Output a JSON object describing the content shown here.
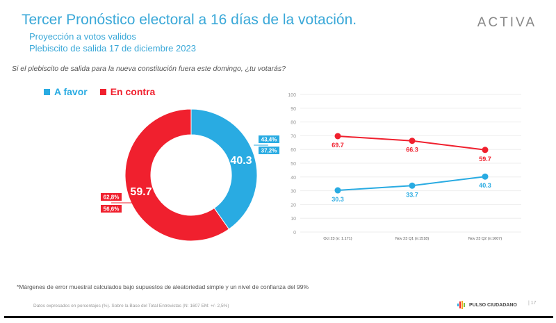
{
  "header": {
    "title": "Tercer Pronóstico electoral a 16 días de la votación.",
    "subtitle1": "Proyección a votos validos",
    "subtitle2": "Plebiscito de salida 17 de diciembre 2023",
    "logo": "ACTIVA"
  },
  "question": "Si el plebiscito de salida para la nueva constitución fuera este domingo, ¿tu votarás?",
  "colors": {
    "favor": "#29abe2",
    "contra": "#f0202e",
    "title": "#3aa8d8"
  },
  "chart_data": [
    {
      "type": "pie",
      "variant": "donut",
      "legend": [
        "A favor",
        "En contra"
      ],
      "legend_position": "top-left",
      "slices": [
        {
          "name": "A favor",
          "value": 40.3,
          "label": "40.3",
          "range": [
            "43,4%",
            "37,2%"
          ]
        },
        {
          "name": "En contra",
          "value": 59.7,
          "label": "59.7",
          "range": [
            "62,8%",
            "56,6%"
          ]
        }
      ]
    },
    {
      "type": "line",
      "categories": [
        "Oct 23 (n: 1.171)",
        "Nov 23 Q1 (n:1518)",
        "Nov 23 Q2 (n:1607)"
      ],
      "ylim": [
        0,
        100
      ],
      "yticks": [
        0,
        10,
        20,
        30,
        40,
        50,
        60,
        70,
        80,
        90,
        100
      ],
      "grid": true,
      "series": [
        {
          "name": "En contra",
          "values": [
            69.7,
            66.3,
            59.7
          ],
          "labels": [
            "69.7",
            "66.3",
            "59.7"
          ]
        },
        {
          "name": "A favor",
          "values": [
            30.3,
            33.7,
            40.3
          ],
          "labels": [
            "30.3",
            "33.7",
            "40.3"
          ]
        }
      ]
    }
  ],
  "footer": {
    "footnote": "*Márgenes de error muestral calculados bajo supuestos de aleatoriedad simple y un nivel de confianza del 99%",
    "source": "Datos expresados en porcentajes (%). Sobre la Base del Total Entrevistas (N: 1607  EM: +/- 2,5%)",
    "brand": "PULSO CIUDADANO",
    "page": "| 17"
  }
}
